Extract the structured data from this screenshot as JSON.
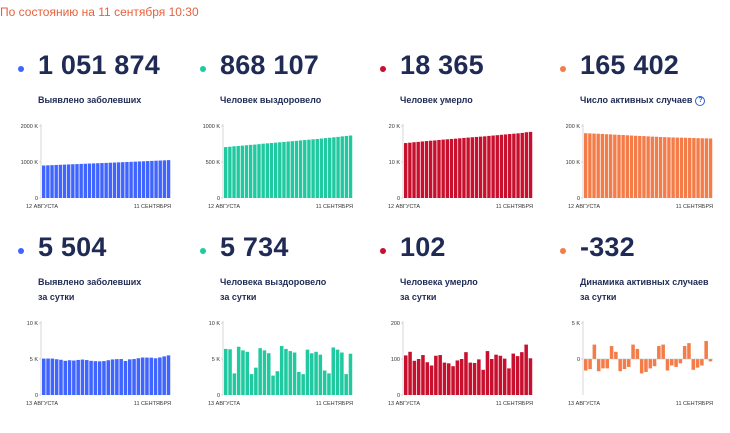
{
  "header": {
    "text": "По состоянию на 11 сентября 10:30"
  },
  "colors": {
    "blue": "#3f64ff",
    "teal": "#20c9a0",
    "red": "#c8102e",
    "orange": "#f47c48",
    "dark": "#1f2a55",
    "axis": "#bdbdbd"
  },
  "cards": [
    {
      "value": "1 051 874",
      "label_lines": [
        "Выявлено заболевших"
      ],
      "color": "#3f64ff"
    },
    {
      "value": "868 107",
      "label_lines": [
        "Человек выздоровело"
      ],
      "color": "#20c9a0"
    },
    {
      "value": "18 365",
      "label_lines": [
        "Человек умерло"
      ],
      "color": "#c8102e"
    },
    {
      "value": "165 402",
      "label_lines": [
        "Число активных случаев"
      ],
      "color": "#f47c48",
      "info_icon": "question-circle-icon",
      "info_symbol": "?"
    },
    {
      "value": "5 504",
      "label_lines": [
        "Выявлено заболевших",
        "за сутки"
      ],
      "color": "#3f64ff"
    },
    {
      "value": "5 734",
      "label_lines": [
        "Человека выздоровело",
        "за сутки"
      ],
      "color": "#20c9a0"
    },
    {
      "value": "102",
      "label_lines": [
        "Человека умерло",
        "за сутки"
      ],
      "color": "#c8102e"
    },
    {
      "value": "-332",
      "label_lines": [
        "Динамика активных случаев",
        "за сутки"
      ],
      "color": "#f47c48"
    }
  ],
  "chart_data": [
    {
      "type": "bar",
      "color": "#3f64ff",
      "ylim": [
        0,
        2000000
      ],
      "yticks": [
        {
          "v": 0,
          "t": "0"
        },
        {
          "v": 1000000,
          "t": "1000 K"
        },
        {
          "v": 2000000,
          "t": "2000 K"
        }
      ],
      "xlabels": [
        "12 АВГУСТА",
        "11 СЕНТЯБРЯ"
      ],
      "values": [
        902701,
        907758,
        912823,
        917884,
        922853,
        927745,
        932493,
        937321,
        942106,
        946976,
        951897,
        956749,
        961493,
        966189,
        970865,
        975576,
        980405,
        985346,
        990326,
        995319,
        1000048,
        1005000,
        1009995,
        1015105,
        1020310,
        1025505,
        1030690,
        1035789,
        1041007,
        1046370,
        1051874
      ]
    },
    {
      "type": "bar",
      "color": "#20c9a0",
      "ylim": [
        0,
        1000000
      ],
      "yticks": [
        {
          "v": 0,
          "t": "0"
        },
        {
          "v": 500000,
          "t": "500 K"
        },
        {
          "v": 1000000,
          "t": "1000 K"
        }
      ],
      "xlabels": [
        "12 АВГУСТА",
        "11 СЕНТЯБРЯ"
      ],
      "values": [
        707000,
        712000,
        718000,
        722000,
        727000,
        733000,
        738000,
        742000,
        748000,
        754000,
        759000,
        764000,
        769000,
        774000,
        778000,
        784000,
        789000,
        794000,
        800000,
        805000,
        810000,
        815000,
        820000,
        826000,
        832000,
        837000,
        843000,
        849000,
        856000,
        862000,
        868107
      ]
    },
    {
      "type": "bar",
      "color": "#c8102e",
      "ylim": [
        0,
        20000
      ],
      "yticks": [
        {
          "v": 0,
          "t": "0"
        },
        {
          "v": 10000,
          "t": "10 K"
        },
        {
          "v": 20000,
          "t": "20 K"
        }
      ],
      "xlabels": [
        "12 АВГУСТА",
        "11 СЕНТЯБРЯ"
      ],
      "values": [
        15260,
        15370,
        15490,
        15590,
        15700,
        15810,
        15910,
        16000,
        16110,
        16220,
        16310,
        16400,
        16480,
        16580,
        16680,
        16780,
        16870,
        16960,
        17050,
        17130,
        17250,
        17350,
        17450,
        17560,
        17660,
        17770,
        17860,
        17960,
        18080,
        18260,
        18365
      ]
    },
    {
      "type": "bar",
      "color": "#f47c48",
      "ylim": [
        0,
        200000
      ],
      "yticks": [
        {
          "v": 0,
          "t": "0"
        },
        {
          "v": 100000,
          "t": "100 K"
        },
        {
          "v": 200000,
          "t": "200 K"
        }
      ],
      "xlabels": [
        "12 АВГУСТА",
        "11 СЕНТЯБРЯ"
      ],
      "values": [
        180000,
        179500,
        179000,
        178500,
        178000,
        177200,
        176800,
        176000,
        175500,
        175000,
        174200,
        173500,
        172900,
        172400,
        172000,
        171200,
        170500,
        170100,
        169500,
        169000,
        168500,
        168200,
        167800,
        167600,
        167300,
        167000,
        166600,
        166200,
        165900,
        165700,
        165402
      ]
    },
    {
      "type": "bar",
      "color": "#3f64ff",
      "ylim": [
        0,
        10000
      ],
      "yticks": [
        {
          "v": 0,
          "t": "0"
        },
        {
          "v": 5000,
          "t": "5 K"
        },
        {
          "v": 10000,
          "t": "10 K"
        }
      ],
      "xlabels": [
        "13 АВГУСТА",
        "11 СЕНТЯБРЯ"
      ],
      "values": [
        5057,
        5065,
        5061,
        4969,
        4892,
        4748,
        4828,
        4785,
        4870,
        4921,
        4852,
        4744,
        4696,
        4676,
        4711,
        4829,
        4941,
        4980,
        4993,
        4729,
        4952,
        4995,
        5110,
        5205,
        5195,
        5185,
        5099,
        5218,
        5363,
        5504
      ]
    },
    {
      "type": "bar",
      "color": "#20c9a0",
      "ylim": [
        0,
        10000
      ],
      "yticks": [
        {
          "v": 0,
          "t": "0"
        },
        {
          "v": 5000,
          "t": "5 K"
        },
        {
          "v": 10000,
          "t": "10 K"
        }
      ],
      "xlabels": [
        "13 АВГУСТА",
        "11 СЕНТЯБРЯ"
      ],
      "values": [
        6400,
        6350,
        3000,
        6700,
        6200,
        6000,
        2900,
        3800,
        6500,
        6200,
        5800,
        2700,
        3300,
        6800,
        6400,
        6100,
        5900,
        3200,
        2900,
        6300,
        5800,
        6000,
        5600,
        3400,
        3000,
        6600,
        6300,
        5900,
        2900,
        5734
      ]
    },
    {
      "type": "bar",
      "color": "#c8102e",
      "ylim": [
        0,
        200
      ],
      "yticks": [
        {
          "v": 0,
          "t": "0"
        },
        {
          "v": 100,
          "t": "100"
        },
        {
          "v": 200,
          "t": "200"
        }
      ],
      "xlabels": [
        "13 АВГУСТА",
        "11 СЕНТЯБРЯ"
      ],
      "values": [
        110,
        120,
        95,
        100,
        111,
        91,
        82,
        109,
        111,
        90,
        88,
        80,
        96,
        100,
        119,
        90,
        89,
        99,
        70,
        122,
        100,
        112,
        109,
        101,
        74,
        115,
        108,
        119,
        140,
        102
      ]
    },
    {
      "type": "bar",
      "color": "#f47c48",
      "ylim": [
        -5000,
        5000
      ],
      "yticks": [
        {
          "v": 0,
          "t": "0"
        },
        {
          "v": 5000,
          "t": "5 K"
        }
      ],
      "xlabels": [
        "13 АВГУСТА",
        "11 СЕНТЯБРЯ"
      ],
      "values": [
        -1600,
        -1400,
        2000,
        -1700,
        -1300,
        -1300,
        1800,
        1000,
        -1700,
        -1400,
        -1100,
        2000,
        1400,
        -2000,
        -1800,
        -1300,
        -1000,
        1800,
        2000,
        -1600,
        -900,
        -1100,
        -600,
        1800,
        2200,
        -1500,
        -1200,
        -900,
        2500,
        -332
      ]
    }
  ]
}
